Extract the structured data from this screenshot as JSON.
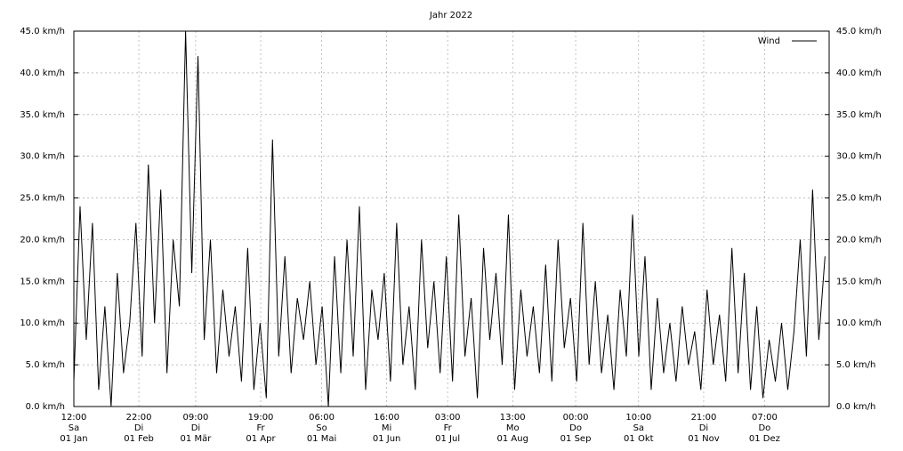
{
  "chart_data": {
    "type": "line",
    "title": "Jahr 2022",
    "x": [
      0.5,
      3.5,
      6.5,
      9.5,
      12.5,
      15.5,
      18.5,
      21.5,
      24.5,
      27.5,
      30.5,
      33.5,
      36.5,
      39.5,
      42.5,
      45.5,
      48.5,
      51.5,
      54.5,
      57.5,
      60.5,
      63.5,
      66.5,
      69.5,
      72.5,
      75.5,
      78.5,
      81.5,
      84.5,
      87.5,
      90.5,
      93.5,
      96.5,
      99.5,
      102.5,
      105.5,
      108.5,
      111.5,
      114.5,
      117.5,
      120.5,
      123.5,
      126.5,
      129.5,
      132.5,
      135.5,
      138.5,
      141.5,
      144.5,
      147.5,
      150.5,
      153.5,
      156.5,
      159.5,
      162.5,
      165.5,
      168.5,
      171.5,
      174.5,
      177.5,
      180.5,
      183.5,
      186.5,
      189.5,
      192.5,
      195.5,
      198.5,
      201.5,
      204.5,
      207.5,
      210.5,
      213.5,
      216.5,
      219.5,
      222.5,
      225.5,
      228.5,
      231.5,
      234.5,
      237.5,
      240.5,
      243.5,
      246.5,
      249.5,
      252.5,
      255.5,
      258.5,
      261.5,
      264.5,
      267.5,
      270.5,
      273.5,
      276.5,
      279.5,
      282.5,
      285.5,
      288.5,
      291.5,
      294.5,
      297.5,
      300.5,
      303.5,
      306.5,
      309.5,
      312.5,
      315.5,
      318.5,
      321.5,
      324.5,
      327.5,
      330.5,
      333.5,
      336.5,
      339.5,
      342.5,
      345.5,
      348.5,
      351.5,
      354.5,
      357.5,
      360.5,
      363.5
    ],
    "series": [
      {
        "name": "Wind",
        "color": "#000000",
        "values": [
          3,
          24,
          8,
          22,
          2,
          12,
          0,
          16,
          4,
          10,
          22,
          6,
          29,
          10,
          26,
          4,
          20,
          12,
          45,
          16,
          42,
          8,
          20,
          4,
          14,
          6,
          12,
          3,
          19,
          2,
          10,
          1,
          32,
          6,
          18,
          4,
          13,
          8,
          15,
          5,
          12,
          0,
          18,
          4,
          20,
          6,
          24,
          2,
          14,
          8,
          16,
          3,
          22,
          5,
          12,
          2,
          20,
          7,
          15,
          4,
          18,
          3,
          23,
          6,
          13,
          1,
          19,
          8,
          16,
          5,
          23,
          2,
          14,
          6,
          12,
          4,
          17,
          3,
          20,
          7,
          13,
          3,
          22,
          5,
          15,
          4,
          11,
          2,
          14,
          6,
          23,
          6,
          18,
          2,
          13,
          4,
          10,
          3,
          12,
          5,
          9,
          2,
          14,
          5,
          11,
          3,
          19,
          4,
          16,
          2,
          12,
          1,
          8,
          3,
          10,
          2,
          9,
          20,
          6,
          26,
          8,
          18
        ]
      }
    ],
    "xlim": [
      0.5,
      365.5
    ],
    "xticks": [
      {
        "value": 0.5,
        "label": [
          "12:00",
          "Sa",
          "01 Jan"
        ]
      },
      {
        "value": 31.917,
        "label": [
          "22:00",
          "Di",
          "01 Feb"
        ]
      },
      {
        "value": 59.375,
        "label": [
          "09:00",
          "Di",
          "01 Mär"
        ]
      },
      {
        "value": 90.792,
        "label": [
          "19:00",
          "Fr",
          "01 Apr"
        ]
      },
      {
        "value": 120.25,
        "label": [
          "06:00",
          "So",
          "01 Mai"
        ]
      },
      {
        "value": 151.667,
        "label": [
          "16:00",
          "Mi",
          "01 Jun"
        ]
      },
      {
        "value": 181.125,
        "label": [
          "03:00",
          "Fr",
          "01 Jul"
        ]
      },
      {
        "value": 212.542,
        "label": [
          "13:00",
          "Mo",
          "01 Aug"
        ]
      },
      {
        "value": 243,
        "label": [
          "00:00",
          "Do",
          "01 Sep"
        ]
      },
      {
        "value": 273.417,
        "label": [
          "10:00",
          "Sa",
          "01 Okt"
        ]
      },
      {
        "value": 304.875,
        "label": [
          "21:00",
          "Di",
          "01 Nov"
        ]
      },
      {
        "value": 334.292,
        "label": [
          "07:00",
          "Do",
          "01 Dez"
        ]
      }
    ],
    "ylim": [
      0,
      45
    ],
    "yticks": [
      {
        "value": 0,
        "label": "0.0 km/h"
      },
      {
        "value": 5,
        "label": "5.0 km/h"
      },
      {
        "value": 10,
        "label": "10.0 km/h"
      },
      {
        "value": 15,
        "label": "15.0 km/h"
      },
      {
        "value": 20,
        "label": "20.0 km/h"
      },
      {
        "value": 25,
        "label": "25.0 km/h"
      },
      {
        "value": 30,
        "label": "30.0 km/h"
      },
      {
        "value": 35,
        "label": "35.0 km/h"
      },
      {
        "value": 40,
        "label": "40.0 km/h"
      },
      {
        "value": 45,
        "label": "45.0 km/h"
      }
    ],
    "grid": true,
    "legend": "top-right"
  }
}
